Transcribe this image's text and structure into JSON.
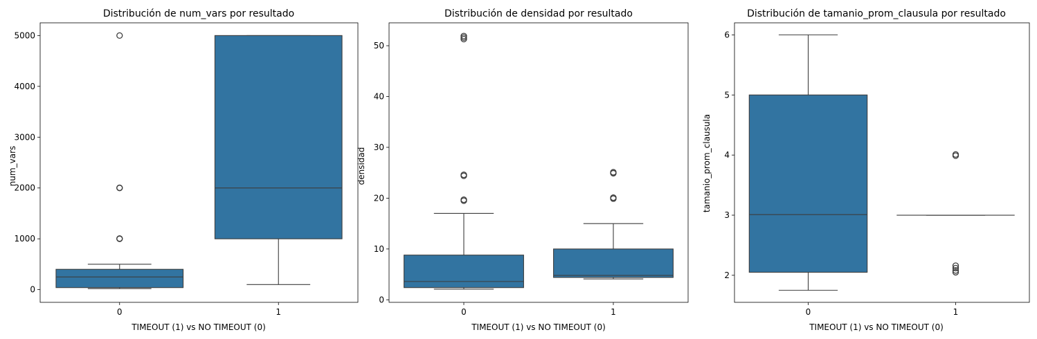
{
  "chart_data": [
    {
      "type": "box",
      "title": "Distribución de num_vars por resultado",
      "xlabel": "TIMEOUT (1) vs NO TIMEOUT (0)",
      "ylabel": "num_vars",
      "categories": [
        "0",
        "1"
      ],
      "ylim": [
        -250,
        5250
      ],
      "yticks": [
        0,
        1000,
        2000,
        3000,
        4000,
        5000
      ],
      "box_color": "#3274a1",
      "boxes": [
        {
          "category": "0",
          "whisker_low": 20,
          "q1": 40,
          "median": 250,
          "q3": 400,
          "whisker_high": 500,
          "outliers": [
            1000,
            1005,
            2000,
            2005,
            5000
          ]
        },
        {
          "category": "1",
          "whisker_low": 100,
          "q1": 1000,
          "median": 2000,
          "q3": 5000,
          "whisker_high": 5000,
          "outliers": []
        }
      ]
    },
    {
      "type": "box",
      "title": "Distribución de densidad por resultado",
      "xlabel": "TIMEOUT (1) vs NO TIMEOUT (0)",
      "ylabel": "densidad",
      "categories": [
        "0",
        "1"
      ],
      "ylim": [
        -0.5,
        54.5
      ],
      "yticks": [
        0,
        10,
        20,
        30,
        40,
        50
      ],
      "box_color": "#3274a1",
      "boxes": [
        {
          "category": "0",
          "whisker_low": 2.1,
          "q1": 2.4,
          "median": 3.6,
          "q3": 8.8,
          "whisker_high": 17,
          "outliers": [
            19.5,
            19.7,
            24.4,
            24.6,
            51.3,
            51.6,
            51.9
          ]
        },
        {
          "category": "1",
          "whisker_low": 4.1,
          "q1": 4.4,
          "median": 4.8,
          "q3": 10,
          "whisker_high": 15,
          "outliers": [
            19.9,
            20.1,
            24.9,
            25.1
          ]
        }
      ]
    },
    {
      "type": "box",
      "title": "Distribución de tamanio_prom_clausula por resultado",
      "xlabel": "TIMEOUT (1) vs NO TIMEOUT (0)",
      "ylabel": "tamanio_prom_clausula",
      "categories": [
        "0",
        "1"
      ],
      "ylim": [
        1.55,
        6.2
      ],
      "yticks": [
        2,
        3,
        4,
        5,
        6
      ],
      "box_color": "#3274a1",
      "boxes": [
        {
          "category": "0",
          "whisker_low": 1.75,
          "q1": 2.05,
          "median": 3.01,
          "q3": 5,
          "whisker_high": 6,
          "outliers": []
        },
        {
          "category": "1",
          "whisker_low": 3,
          "q1": 3,
          "median": 3,
          "q3": 3,
          "whisker_high": 3,
          "outliers": [
            2.05,
            2.08,
            2.12,
            2.16,
            3.99,
            4.01
          ]
        }
      ]
    }
  ]
}
